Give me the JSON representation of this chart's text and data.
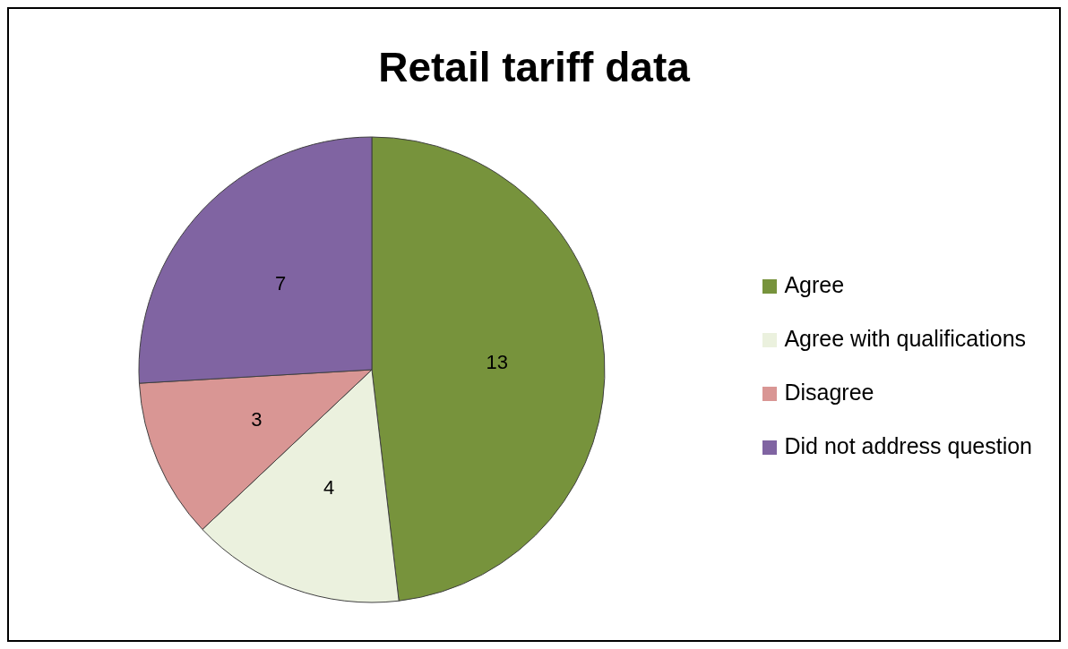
{
  "chart_data": {
    "type": "pie",
    "title": "Retail tariff data",
    "categories": [
      "Agree",
      "Agree with qualifications",
      "Disagree",
      "Did not address  question"
    ],
    "values": [
      13,
      4,
      3,
      7
    ],
    "colors": [
      "#77933c",
      "#ebf1de",
      "#d99694",
      "#8064a2"
    ],
    "data_labels": true,
    "legend": "right"
  }
}
